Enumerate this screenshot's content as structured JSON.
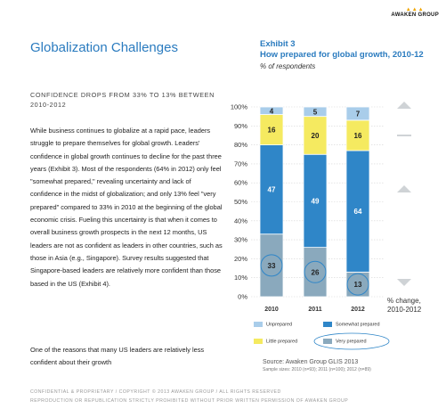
{
  "brand": {
    "name": "AWAKEN GROUP"
  },
  "article": {
    "title": "Globalization Challenges",
    "subhead": "CONFIDENCE DROPS FROM 33% TO 13% BETWEEN 2010-2012",
    "paragraph1": "While business continues to globalize at a rapid pace, leaders struggle to prepare themselves for global growth. Leaders' confidence in global growth continues to decline for the past three years (Exhibit 3). Most of the respondents (64% in 2012) only feel \"somewhat prepared,\" revealing uncertainty and lack of confidence in the midst of globalization; and only 13% feel \"very prepared\" compared to 33% in 2010 at the beginning of the global economic crisis. Fueling this uncertainty is that when it comes to overall business growth prospects in the next 12 months, US leaders are not as confident as leaders in other countries, such as those in Asia (e.g., Singapore). Survey results suggested that Singapore-based leaders are relatively more confident than those based in the US (Exhibit 4).",
    "paragraph2": "One of the reasons that many US leaders are relatively less confident about their growth"
  },
  "exhibit": {
    "label": "Exhibit 3",
    "title": "How prepared for global growth, 2010-12",
    "subtitle": "% of respondents",
    "pct_change_note_line1": "% change,",
    "pct_change_note_line2": "2010-2012",
    "source": "Source: Awaken Group GLIS 2013",
    "sample_sizes": "Sample sizes: 2010 (n=93); 2011 (n=100); 2012 (n=89)"
  },
  "chart_data": {
    "type": "bar",
    "stacked": true,
    "categories": [
      "2010",
      "2011",
      "2012"
    ],
    "ylim": [
      0,
      100
    ],
    "yticks": [
      "0%",
      "10%",
      "20%",
      "30%",
      "40%",
      "50%",
      "60%",
      "70%",
      "80%",
      "90%",
      "100%"
    ],
    "series": [
      {
        "name": "Very prepared",
        "color": "#8aa9bd",
        "values": [
          33,
          26,
          13
        ]
      },
      {
        "name": "Somewhat prepared",
        "color": "#2f86c8",
        "values": [
          47,
          49,
          64
        ]
      },
      {
        "name": "Little prepared",
        "color": "#f5ea60",
        "values": [
          16,
          20,
          16
        ]
      },
      {
        "name": "Unprepared",
        "color": "#a9cdea",
        "values": [
          4,
          5,
          7
        ]
      }
    ],
    "legend": [
      "Unprepared",
      "Somewhat prepared",
      "Little prepared",
      "Very prepared"
    ],
    "grid": true,
    "circled_series": "Very prepared",
    "trend_arrows": [
      "up",
      "flat",
      "up",
      "down"
    ]
  },
  "footer": {
    "line1": "CONFIDENTIAL & PROPRIETARY / COPYRIGHT © 2013 AWAKEN GROUP / ALL RIGHTS RESERVED",
    "line2": "REPRODUCTION OR REPUBLICATION STRICTLY PROHIBITED WITHOUT PRIOR WRITTEN PERMISSION OF AWAKEN GROUP"
  }
}
